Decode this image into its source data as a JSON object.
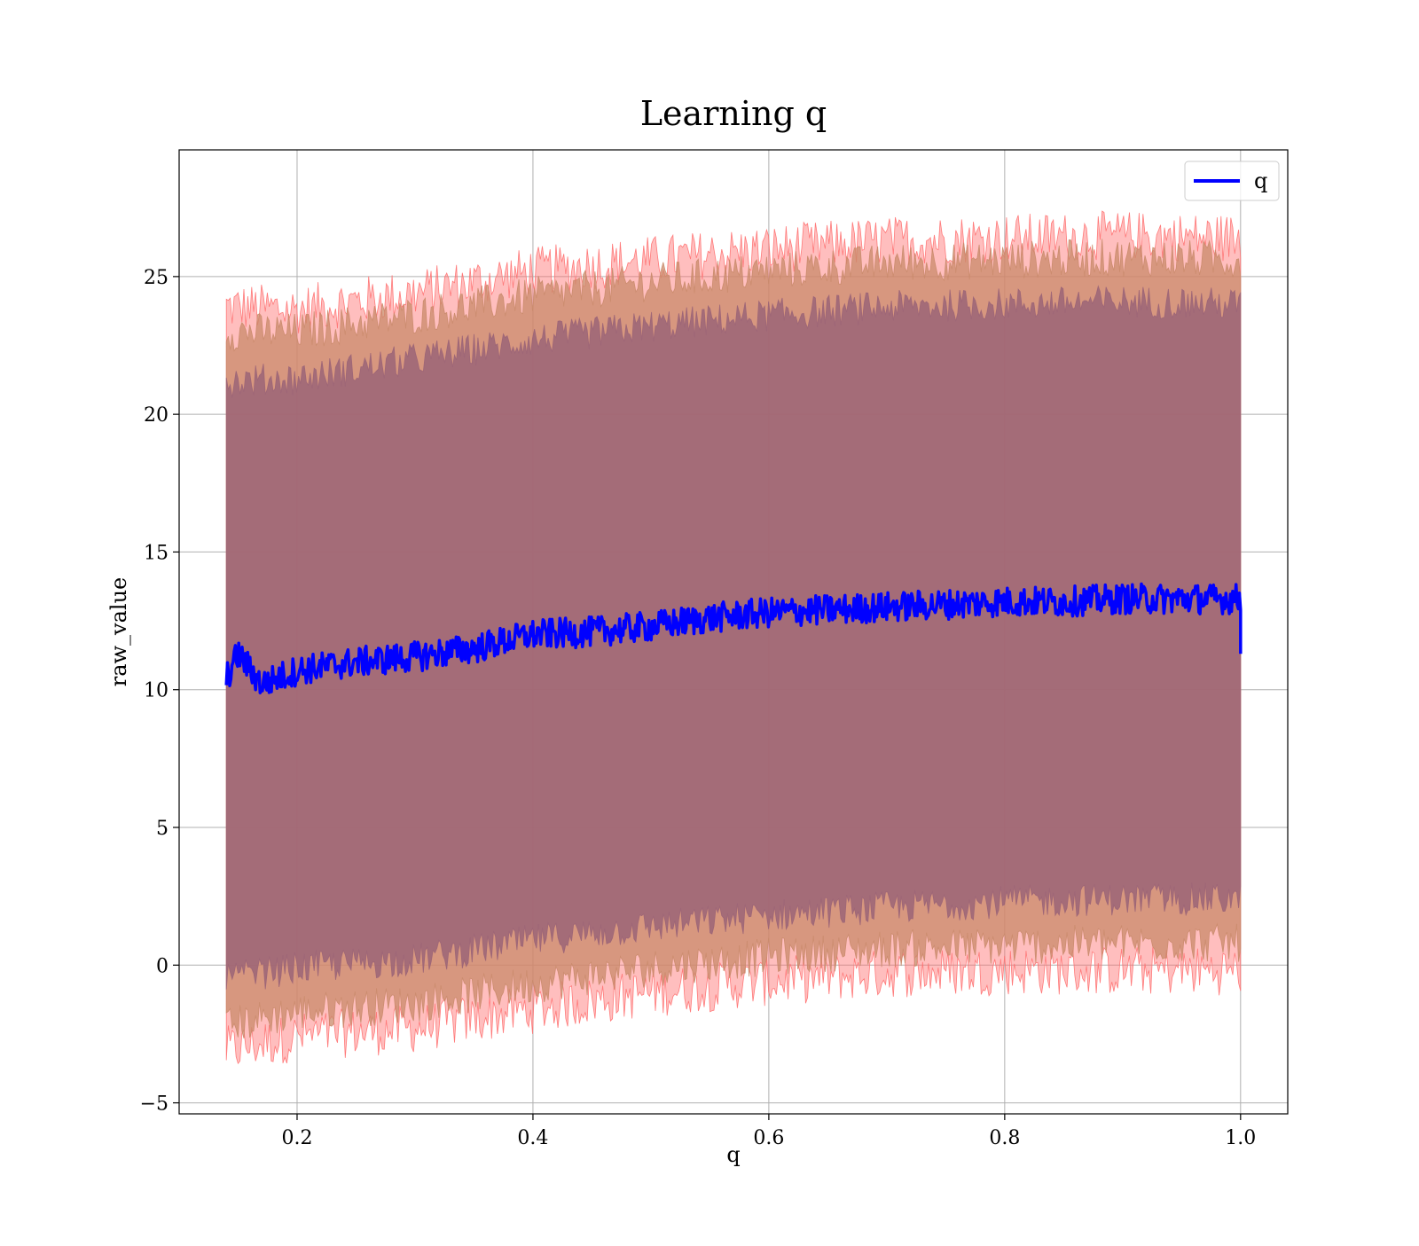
{
  "chart_data": {
    "type": "line",
    "title": "Learning q",
    "xlabel": "q",
    "ylabel": "raw_value",
    "xlim": [
      0.1,
      1.04
    ],
    "ylim": [
      -5.4,
      29.6
    ],
    "xticks": [
      0.2,
      0.4,
      0.6,
      0.8,
      1.0
    ],
    "xtick_labels": [
      "0.2",
      "0.4",
      "0.6",
      "0.8",
      "1.0"
    ],
    "yticks": [
      -5,
      0,
      5,
      10,
      15,
      20,
      25
    ],
    "ytick_labels": [
      "−5",
      "0",
      "5",
      "10",
      "15",
      "20",
      "25"
    ],
    "grid": true,
    "legend": {
      "position": "top-right",
      "entries": [
        {
          "label": "q",
          "color": "#0000ff"
        }
      ]
    },
    "x_range": [
      0.14,
      1.0
    ],
    "series": [
      {
        "name": "q",
        "color": "#0000ff",
        "x": [
          0.14,
          0.15,
          0.17,
          0.2,
          0.25,
          0.3,
          0.35,
          0.4,
          0.45,
          0.5,
          0.55,
          0.6,
          0.65,
          0.7,
          0.75,
          0.8,
          0.85,
          0.9,
          0.95,
          1.0
        ],
        "y": [
          10.4,
          11.3,
          10.2,
          10.7,
          11.0,
          11.2,
          11.5,
          12.0,
          12.1,
          12.3,
          12.6,
          12.8,
          12.9,
          13.0,
          13.1,
          13.2,
          13.2,
          13.3,
          13.3,
          13.3
        ],
        "noise_amplitude": 0.55,
        "end_drop_value": 11.3
      }
    ],
    "bands": [
      {
        "name": "band-outer",
        "color": "#ff6f6f",
        "opacity": 0.45,
        "x": [
          0.14,
          0.2,
          0.3,
          0.4,
          0.5,
          0.6,
          0.7,
          0.8,
          0.9,
          1.0
        ],
        "upper": [
          23.9,
          23.8,
          24.4,
          25.2,
          25.6,
          26.0,
          26.3,
          26.4,
          26.5,
          26.4
        ],
        "lower": [
          -3.1,
          -2.6,
          -2.3,
          -1.6,
          -1.0,
          -0.6,
          -0.3,
          -0.2,
          -0.2,
          -0.2
        ],
        "noise_amplitude": 0.9
      },
      {
        "name": "band-middle",
        "color": "#c98a6a",
        "opacity": 0.75,
        "x": [
          0.14,
          0.2,
          0.3,
          0.4,
          0.5,
          0.6,
          0.7,
          0.8,
          0.9,
          1.0
        ],
        "upper": [
          23.0,
          23.0,
          23.6,
          24.3,
          24.8,
          25.2,
          25.5,
          25.6,
          25.7,
          25.6
        ],
        "lower": [
          -2.2,
          -1.7,
          -1.4,
          -0.7,
          -0.1,
          0.3,
          0.6,
          0.7,
          0.8,
          0.8
        ],
        "noise_amplitude": 0.7
      },
      {
        "name": "band-inner",
        "color": "#9b6477",
        "opacity": 0.85,
        "x": [
          0.14,
          0.2,
          0.3,
          0.4,
          0.5,
          0.6,
          0.7,
          0.8,
          0.9,
          1.0
        ],
        "upper": [
          21.2,
          21.3,
          22.0,
          22.7,
          23.2,
          23.6,
          23.9,
          24.0,
          24.1,
          24.0
        ],
        "lower": [
          -0.5,
          -0.1,
          0.2,
          0.9,
          1.4,
          1.8,
          2.1,
          2.3,
          2.4,
          2.4
        ],
        "noise_amplitude": 0.6
      }
    ]
  }
}
